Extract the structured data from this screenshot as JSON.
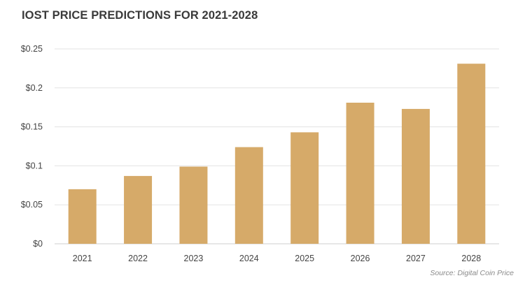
{
  "chart_data": {
    "type": "bar",
    "title": "IOST PRICE PREDICTIONS FOR 2021-2028",
    "categories": [
      "2021",
      "2022",
      "2023",
      "2024",
      "2025",
      "2026",
      "2027",
      "2028"
    ],
    "values": [
      0.07,
      0.087,
      0.099,
      0.124,
      0.143,
      0.181,
      0.173,
      0.231
    ],
    "y_ticks": [
      0,
      0.05,
      0.1,
      0.15,
      0.2,
      0.25
    ],
    "y_tick_labels": [
      "$0",
      "$0.05",
      "$0.1",
      "$0.15",
      "$0.2",
      "$0.25"
    ],
    "ylim": [
      0,
      0.25
    ],
    "grid": true,
    "bar_color": "#d6aa69",
    "grid_color": "#e3e3e3",
    "source": "Source: Digital Coin Price"
  }
}
